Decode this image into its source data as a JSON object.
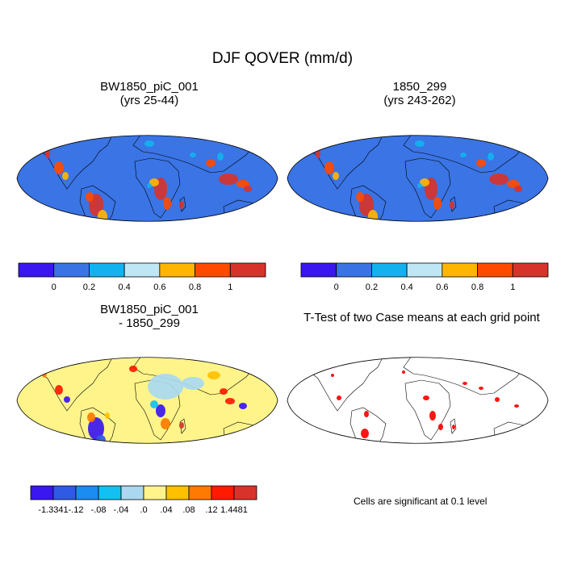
{
  "chart_data": {
    "type": "heatmap",
    "title": "DJF QOVER (mm/d)",
    "panels": [
      {
        "id": "case1",
        "title_lines": [
          "BW1850_piC_001",
          "(yrs 25-44)"
        ],
        "colorbar": {
          "colors": [
            "#3a16f0",
            "#3a74e5",
            "#12b2ef",
            "#bfe6f5",
            "#ffb600",
            "#ff4a00",
            "#d8332a"
          ],
          "labels": [
            "0",
            "0.2",
            "0.4",
            "0.6",
            "0.8",
            "1"
          ]
        }
      },
      {
        "id": "case2",
        "title_lines": [
          "1850_299",
          "(yrs 243-262)"
        ],
        "colorbar": {
          "colors": [
            "#3a16f0",
            "#3a74e5",
            "#12b2ef",
            "#bfe6f5",
            "#ffb600",
            "#ff4a00",
            "#d8332a"
          ],
          "labels": [
            "0",
            "0.2",
            "0.4",
            "0.6",
            "0.8",
            "1"
          ]
        }
      },
      {
        "id": "diff",
        "title_lines": [
          "BW1850_piC_001",
          "- 1850_299"
        ],
        "colorbar": {
          "colors": [
            "#3a16f0",
            "#2f5ae6",
            "#1a8cf2",
            "#12c1f2",
            "#a9d8f0",
            "#fff48a",
            "#ffc000",
            "#ff7a00",
            "#ff1a00",
            "#d8332a"
          ],
          "labels": [
            "-1.3341",
            "-.12",
            "-.08",
            "-.04",
            ".0",
            ".04",
            ".08",
            ".12",
            "1.4481"
          ]
        }
      },
      {
        "id": "ttest",
        "title_lines": [
          "T-Test of two Case means at each grid point"
        ],
        "note": "Cells are significant at 0.1 level"
      }
    ]
  }
}
